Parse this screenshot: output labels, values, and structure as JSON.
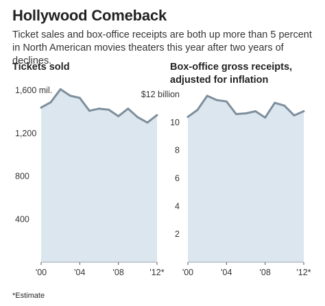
{
  "header": {
    "title": "Hollywood Comeback",
    "subtitle": "Ticket sales and box-office receipts are both up more than 5 percent in North American movies theaters this year after two years of declines."
  },
  "footnote": "*Estimate",
  "chart_data": [
    {
      "type": "area",
      "title": "Tickets sold",
      "x": [
        2000,
        2001,
        2002,
        2003,
        2004,
        2005,
        2006,
        2007,
        2008,
        2009,
        2010,
        2011,
        2012
      ],
      "values": [
        1440,
        1490,
        1610,
        1550,
        1530,
        1410,
        1430,
        1420,
        1360,
        1430,
        1350,
        1300,
        1370
      ],
      "ylim": [
        0,
        1600
      ],
      "yticks": [
        400,
        800,
        1200,
        1600
      ],
      "ytick_labels": [
        "400",
        "800",
        "1,200",
        "1,600 mil."
      ],
      "xticks": [
        2000,
        2004,
        2008,
        2012
      ],
      "xtick_labels": [
        "'00",
        "'04",
        "'08",
        "'12*"
      ],
      "grid": false
    },
    {
      "type": "area",
      "title": "Box-office gross receipts, adjusted for inflation",
      "x": [
        2000,
        2001,
        2002,
        2003,
        2004,
        2005,
        2006,
        2007,
        2008,
        2009,
        2010,
        2011,
        2012
      ],
      "values": [
        10.4,
        10.9,
        11.9,
        11.6,
        11.5,
        10.6,
        10.65,
        10.8,
        10.35,
        11.4,
        11.2,
        10.5,
        10.8
      ],
      "ylim": [
        0,
        12
      ],
      "yticks": [
        2,
        4,
        6,
        8,
        10,
        12
      ],
      "ytick_labels": [
        "2",
        "4",
        "6",
        "8",
        "10",
        "$12 billion"
      ],
      "xticks": [
        2000,
        2004,
        2008,
        2012
      ],
      "xtick_labels": [
        "'00",
        "'04",
        "'08",
        "'12*"
      ],
      "grid": false
    }
  ],
  "colors": {
    "area_fill": "#dce6ef",
    "line": "#7d8e9c",
    "text": "#222222"
  }
}
